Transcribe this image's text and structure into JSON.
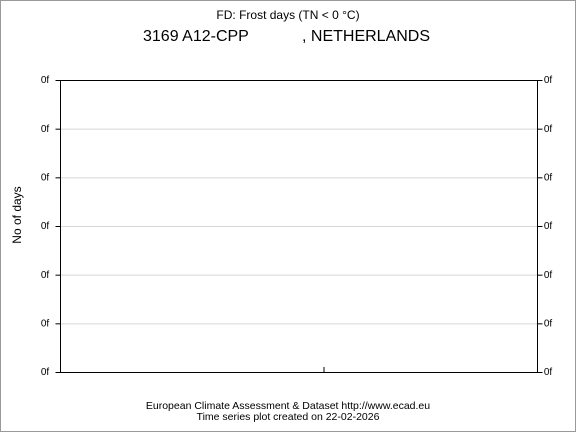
{
  "chart_data": {
    "type": "line",
    "title": "FD: Frost days (TN < 0 °C)",
    "station": "3169 A12-CPP",
    "country": ", NETHERLANDS",
    "ylabel": "No of days",
    "footer": [
      "European Climate Assessment & Dataset  http://www.ecad.eu",
      "Time series plot created on 22-02-2026"
    ],
    "ylim": [
      0,
      6
    ],
    "yticks": [
      {
        "value": 0,
        "label": "0f"
      },
      {
        "value": 1,
        "label": "0f"
      },
      {
        "value": 2,
        "label": "0f"
      },
      {
        "value": 3,
        "label": "0f"
      },
      {
        "value": 4,
        "label": "0f"
      },
      {
        "value": 5,
        "label": "0f"
      },
      {
        "value": 6,
        "label": "0f"
      }
    ],
    "y2lim": [
      0,
      6
    ],
    "y2ticks": [
      {
        "value": 0,
        "label": "0f"
      },
      {
        "value": 1,
        "label": "0f"
      },
      {
        "value": 2,
        "label": "0f"
      },
      {
        "value": 3,
        "label": "0f"
      },
      {
        "value": 4,
        "label": "0f"
      },
      {
        "value": 5,
        "label": "0f"
      },
      {
        "value": 6,
        "label": "0f"
      }
    ],
    "grid": true,
    "series": []
  }
}
